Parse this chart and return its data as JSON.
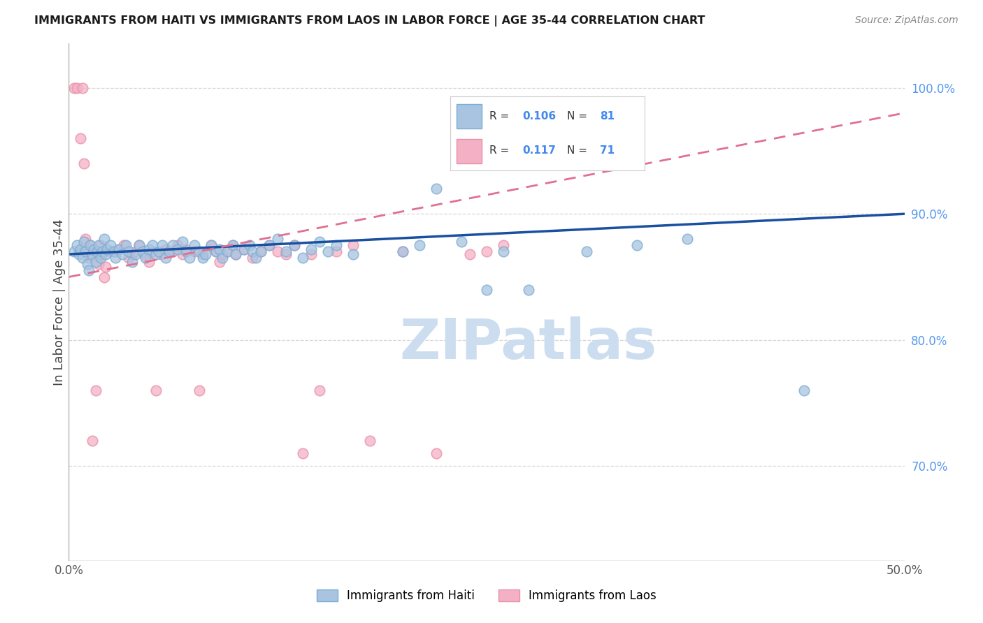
{
  "title": "IMMIGRANTS FROM HAITI VS IMMIGRANTS FROM LAOS IN LABOR FORCE | AGE 35-44 CORRELATION CHART",
  "source": "Source: ZipAtlas.com",
  "ylabel": "In Labor Force | Age 35-44",
  "xlim": [
    0.0,
    0.5
  ],
  "ylim": [
    0.625,
    1.035
  ],
  "yticks_right": [
    0.7,
    0.8,
    0.9,
    1.0
  ],
  "ytick_labels_right": [
    "70.0%",
    "80.0%",
    "90.0%",
    "100.0%"
  ],
  "haiti_R": 0.106,
  "haiti_N": 81,
  "laos_R": 0.117,
  "laos_N": 71,
  "haiti_color": "#a8c4e0",
  "haiti_edge_color": "#7aadd4",
  "laos_color": "#f4b0c5",
  "laos_edge_color": "#e890aa",
  "haiti_line_color": "#1a50a0",
  "laos_line_color": "#e07090",
  "background_color": "#ffffff",
  "grid_color": "#cccccc",
  "watermark_color": "#ccddf0",
  "legend_box_color": "#f0f4f8"
}
